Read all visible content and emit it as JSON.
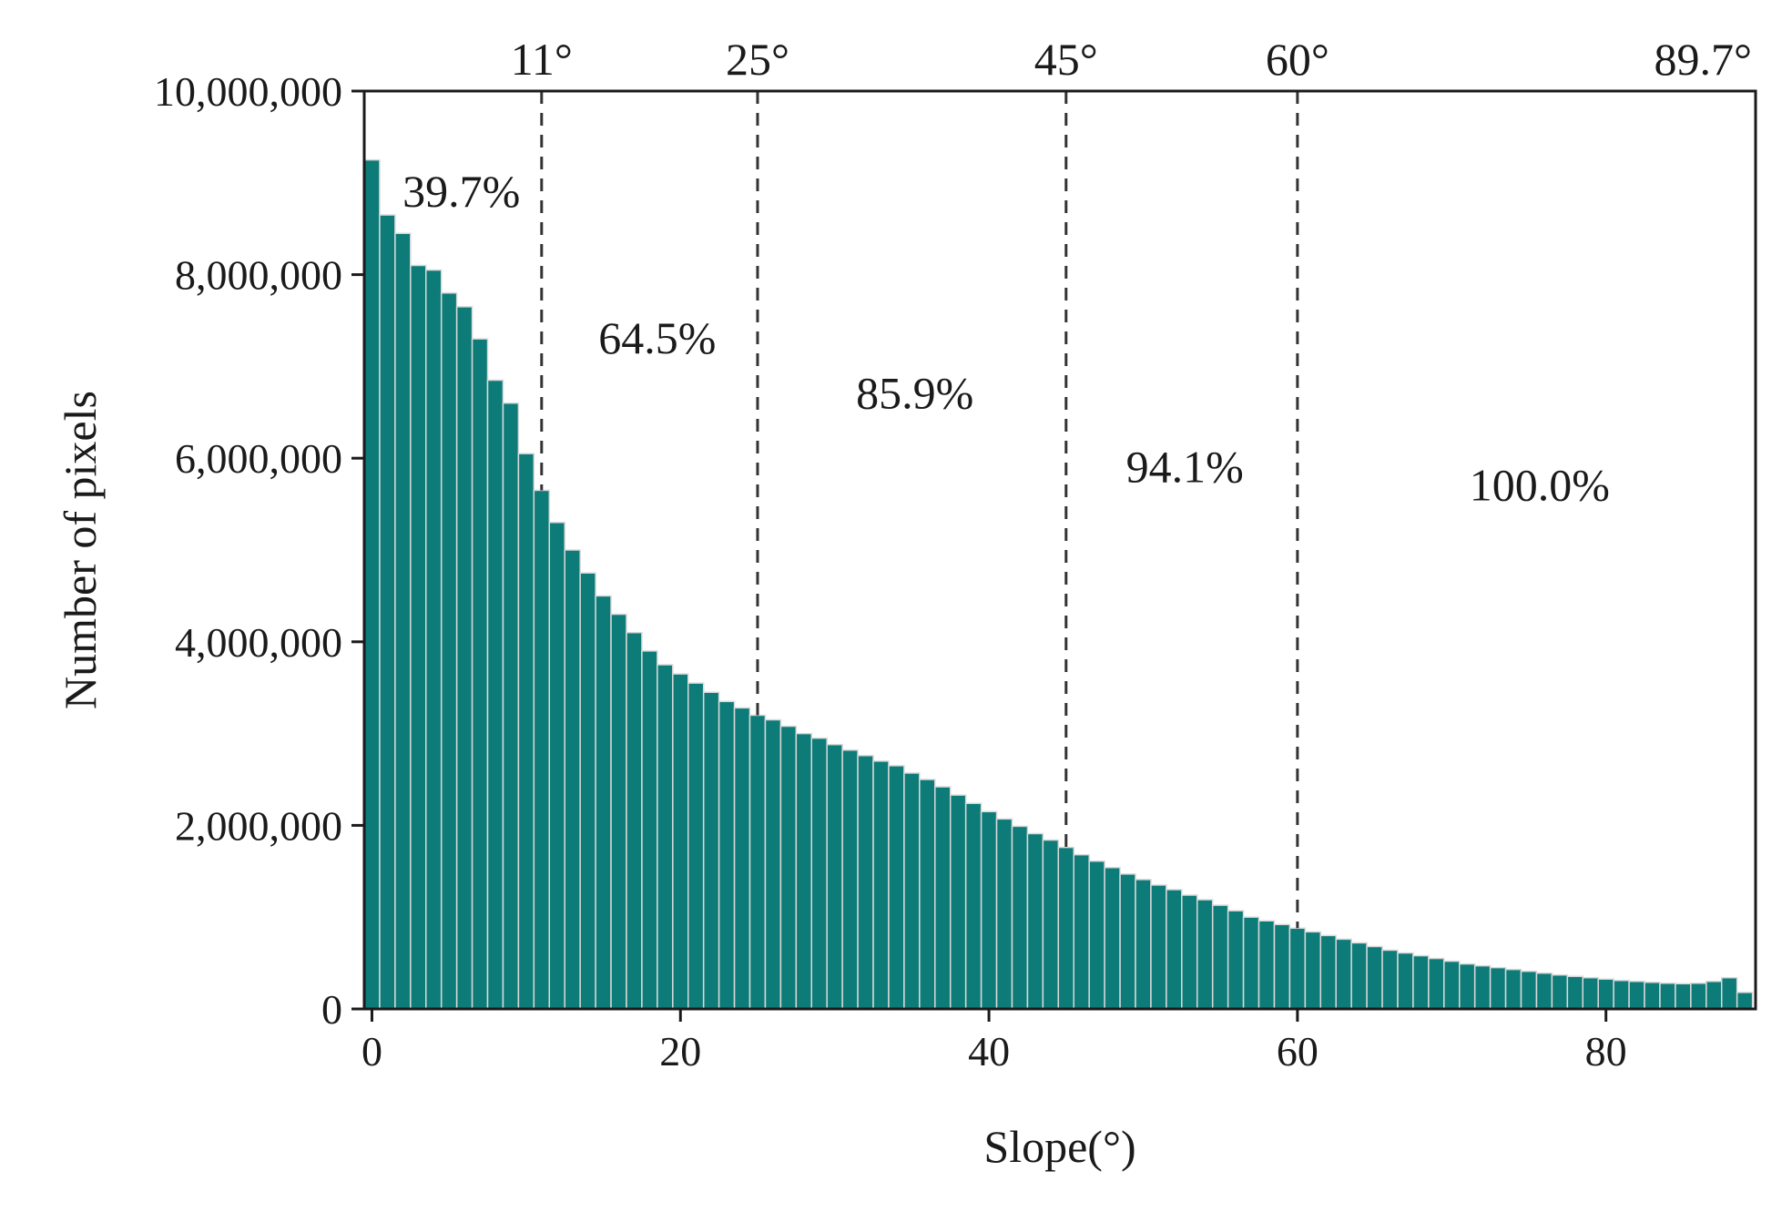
{
  "chart_data": {
    "type": "bar",
    "title": "",
    "xlabel": "Slope(°)",
    "ylabel": "Number of pixels",
    "xlim": [
      -0.5,
      89.7
    ],
    "ylim": [
      0,
      10000000
    ],
    "x_ticks": [
      0,
      20,
      40,
      60,
      80
    ],
    "x_tick_labels": [
      "0",
      "20",
      "40",
      "60",
      "80"
    ],
    "y_ticks": [
      0,
      2000000,
      4000000,
      6000000,
      8000000,
      10000000
    ],
    "y_tick_labels": [
      "0",
      "2,000,000",
      "4,000,000",
      "6,000,000",
      "8,000,000",
      "10,000,000"
    ],
    "grid": false,
    "bar_color": "#0d7b78",
    "bar_edge_color": "#d9d9d9",
    "threshold_line_color": "#333333",
    "thresholds": [
      {
        "x": 11,
        "label": "11°"
      },
      {
        "x": 25,
        "label": "25°"
      },
      {
        "x": 45,
        "label": "45°"
      },
      {
        "x": 60,
        "label": "60°"
      },
      {
        "x": 89.7,
        "label": "89.7°"
      }
    ],
    "region_annotations": [
      {
        "text": "39.7%",
        "x": 5.8,
        "y": 8900000
      },
      {
        "text": "64.5%",
        "x": 18.5,
        "y": 7300000
      },
      {
        "text": "85.9%",
        "x": 35.2,
        "y": 6700000
      },
      {
        "text": "94.1%",
        "x": 52.7,
        "y": 5900000
      },
      {
        "text": "100.0%",
        "x": 75.7,
        "y": 5700000
      }
    ],
    "categories": [
      0,
      1,
      2,
      3,
      4,
      5,
      6,
      7,
      8,
      9,
      10,
      11,
      12,
      13,
      14,
      15,
      16,
      17,
      18,
      19,
      20,
      21,
      22,
      23,
      24,
      25,
      26,
      27,
      28,
      29,
      30,
      31,
      32,
      33,
      34,
      35,
      36,
      37,
      38,
      39,
      40,
      41,
      42,
      43,
      44,
      45,
      46,
      47,
      48,
      49,
      50,
      51,
      52,
      53,
      54,
      55,
      56,
      57,
      58,
      59,
      60,
      61,
      62,
      63,
      64,
      65,
      66,
      67,
      68,
      69,
      70,
      71,
      72,
      73,
      74,
      75,
      76,
      77,
      78,
      79,
      80,
      81,
      82,
      83,
      84,
      85,
      86,
      87,
      88,
      89
    ],
    "values": [
      9250000,
      8650000,
      8450000,
      8100000,
      8050000,
      7800000,
      7650000,
      7300000,
      6850000,
      6600000,
      6050000,
      5650000,
      5300000,
      5000000,
      4750000,
      4500000,
      4300000,
      4100000,
      3900000,
      3750000,
      3650000,
      3550000,
      3450000,
      3350000,
      3280000,
      3200000,
      3150000,
      3080000,
      3000000,
      2950000,
      2880000,
      2820000,
      2760000,
      2700000,
      2650000,
      2570000,
      2500000,
      2420000,
      2330000,
      2240000,
      2150000,
      2070000,
      1990000,
      1910000,
      1840000,
      1760000,
      1680000,
      1610000,
      1540000,
      1470000,
      1410000,
      1350000,
      1300000,
      1240000,
      1190000,
      1130000,
      1070000,
      1000000,
      960000,
      920000,
      880000,
      840000,
      800000,
      760000,
      720000,
      680000,
      640000,
      610000,
      580000,
      550000,
      520000,
      490000,
      470000,
      450000,
      430000,
      410000,
      390000,
      370000,
      355000,
      340000,
      325000,
      310000,
      300000,
      290000,
      280000,
      275000,
      280000,
      300000,
      340000,
      180000
    ]
  }
}
